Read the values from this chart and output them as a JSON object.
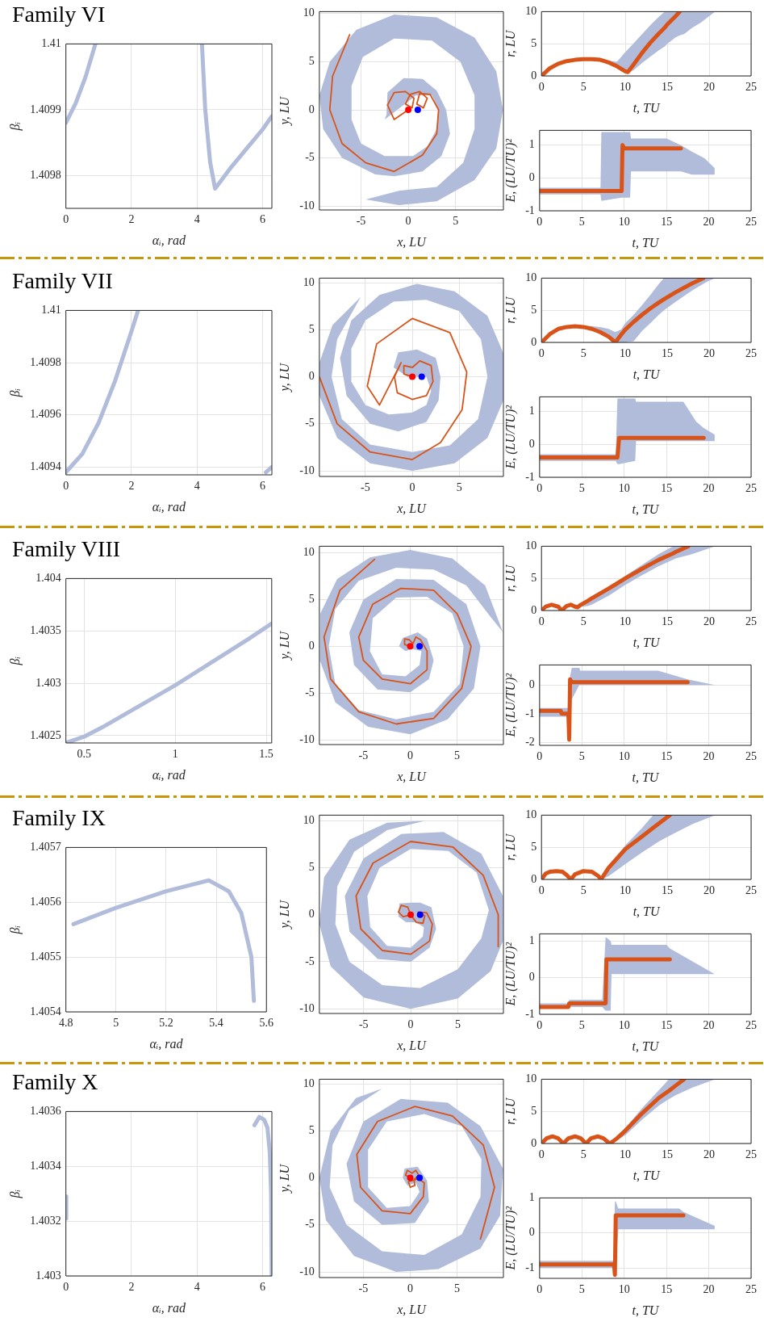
{
  "chart_data": [
    {
      "type": "line",
      "title": "Family VI",
      "xlabel": "αᵢ, rad",
      "ylabel": "βᵢ",
      "xlim": [
        0,
        6.283
      ],
      "xticks": [
        0,
        2,
        4,
        6
      ],
      "ylim": [
        1.40975,
        1.41
      ],
      "yticks": [
        1.4098,
        1.4099,
        1.41
      ],
      "grid": true,
      "series": [
        {
          "color": "#b0bcd9",
          "x": [
            0,
            0.3,
            0.6,
            0.9,
            2.5,
            4.15,
            4.25,
            4.4,
            4.55,
            4.7,
            5.0,
            5.5,
            6.0,
            6.283
          ],
          "values": [
            1.40988,
            1.40991,
            1.40995,
            1.41,
            null,
            1.41,
            1.4099,
            1.40982,
            1.40978,
            1.40979,
            1.40981,
            1.40984,
            1.40987,
            1.40989
          ]
        }
      ]
    },
    {
      "type": "line",
      "xlabel": "x, LU",
      "ylabel": "y, LU",
      "xlim": [
        -9.4,
        10.05
      ],
      "xticks": [
        -5,
        0,
        5
      ],
      "ylim": [
        -10.4,
        10.2
      ],
      "yticks": [
        -10,
        -5,
        0,
        5,
        10
      ],
      "grid": true,
      "series": [
        {
          "type": "area",
          "color": "#b0bcd9",
          "x": [
            -2.3,
            -2.2,
            -0.5,
            1.5,
            3,
            4,
            4.4,
            3.5,
            1.5,
            -1.5,
            -3.5,
            -7,
            -9,
            -9.4,
            -8.3,
            -5.5,
            -1.5,
            3,
            7,
            9.3,
            10,
            9.3,
            7,
            3,
            -1,
            -4.5,
            -1,
            3,
            5.8,
            7,
            7,
            5.5,
            2.5,
            -1.5,
            -4.8,
            -6,
            -6,
            -5,
            -2.5,
            0.5,
            2,
            3,
            3.2,
            2.5,
            0.8,
            -0.5,
            -2.5
          ],
          "values": [
            -0.5,
            1.8,
            3.3,
            3.2,
            2,
            0,
            -2.5,
            -4.8,
            -6.4,
            -6.9,
            -6.7,
            -5,
            -2,
            1.5,
            5,
            8.3,
            9.9,
            9.6,
            7.5,
            4,
            0,
            -4,
            -7.3,
            -9.5,
            -9.9,
            -9.3,
            -8.4,
            -8,
            -5.5,
            -2,
            1.5,
            5,
            7.2,
            7.4,
            5.5,
            2.5,
            -1,
            -3.5,
            -4.8,
            -4.8,
            -3.8,
            -2,
            0,
            1.5,
            1.5,
            0.5,
            -1
          ]
        },
        {
          "type": "line",
          "color": "#d95319",
          "x": [
            0,
            -1.5,
            -2.2,
            -1.5,
            -0.3,
            0.6,
            0.4,
            -0.3,
            0.2,
            1.2,
            2,
            1.6,
            0.9,
            1.2,
            2.3,
            3.2,
            3,
            1.5,
            -1.5,
            -4.5,
            -7,
            -8.3,
            -8,
            -6.2
          ],
          "values": [
            0,
            -1,
            0.5,
            1.8,
            1.9,
            1.2,
            0.2,
            0.6,
            1.6,
            1.9,
            1.2,
            0.2,
            0.6,
            1.7,
            1.6,
            0,
            -2.5,
            -4.7,
            -6.4,
            -5.5,
            -3.5,
            0,
            3.5,
            7.8
          ]
        },
        {
          "type": "scatter",
          "color": "#ff0000",
          "x": [
            0
          ],
          "values": [
            0
          ]
        },
        {
          "type": "scatter",
          "color": "#0000ff",
          "x": [
            1
          ],
          "values": [
            0
          ]
        }
      ]
    },
    {
      "type": "line",
      "xlabel": "t, TU",
      "ylabel": "r, LU",
      "xlim": [
        0,
        25
      ],
      "xticks": [
        0,
        5,
        10,
        15,
        20,
        25
      ],
      "ylim": [
        0,
        10
      ],
      "yticks": [
        0,
        5,
        10
      ],
      "grid": true,
      "series": [
        {
          "type": "line",
          "color": "#d95319",
          "x": [
            0,
            1,
            2,
            3,
            4,
            5,
            6,
            7,
            7.5,
            8,
            8.5,
            9,
            10,
            10.3,
            11,
            12,
            13,
            14,
            14.7,
            15,
            16,
            16.5,
            17,
            18,
            19,
            20,
            20.7
          ],
          "values": [
            0,
            1.2,
            1.9,
            2.3,
            2.5,
            2.6,
            2.6,
            2.5,
            2.3,
            2.1,
            1.8,
            1.5,
            0.7,
            0.6,
            1.8,
            3.6,
            5.2,
            6.6,
            7.5,
            8,
            9.3,
            10,
            null,
            null,
            null,
            null,
            null
          ],
          "lower": [
            0,
            1.1,
            1.8,
            2.2,
            2.4,
            2.5,
            2.5,
            2.4,
            2.3,
            2,
            1.8,
            1.3,
            0.5,
            0.4,
            0.9,
            2,
            3,
            4,
            4.6,
            5,
            6,
            6.3,
            6.5,
            7.5,
            8.3,
            9.3,
            10
          ],
          "upper": [
            0,
            1.3,
            2,
            2.4,
            2.6,
            2.7,
            2.7,
            2.6,
            2.6,
            2.4,
            2.3,
            2.2,
            3.7,
            4.1,
            5.1,
            6.5,
            7.9,
            9.2,
            10,
            10,
            10,
            10,
            10,
            10,
            10,
            10,
            10
          ]
        }
      ]
    },
    {
      "type": "line",
      "xlabel": "t, TU",
      "ylabel": "E, (LU/TU)²",
      "xlim": [
        0,
        25
      ],
      "xticks": [
        0,
        5,
        10,
        15,
        20,
        25
      ],
      "ylim": [
        -1,
        1.45
      ],
      "yticks": [
        -1,
        0,
        1
      ],
      "grid": true,
      "series": [
        {
          "type": "line",
          "color": "#d95319",
          "x": [
            0,
            7.2,
            7.3,
            9.7,
            9.8,
            10,
            10.7,
            10.8,
            15,
            16.7,
            18,
            19.5,
            20.7
          ],
          "values": [
            -0.4,
            -0.4,
            -0.4,
            -0.4,
            1,
            0.9,
            0.9,
            0.9,
            0.9,
            0.9,
            null,
            null,
            null
          ],
          "lower": [
            -0.5,
            -0.5,
            -0.7,
            -0.6,
            -0.6,
            -0.6,
            -0.6,
            0.2,
            0.2,
            0.2,
            0.1,
            0.1,
            0.1
          ],
          "upper": [
            -0.3,
            -0.3,
            1.4,
            1.4,
            1.4,
            1.4,
            1.4,
            1.2,
            1.2,
            1,
            0.8,
            0.6,
            0.3
          ]
        }
      ]
    },
    {
      "type": "line",
      "title": "Family VII",
      "xlabel": "αᵢ, rad",
      "ylabel": "βᵢ",
      "xlim": [
        0,
        6.283
      ],
      "xticks": [
        0,
        2,
        4,
        6
      ],
      "ylim": [
        1.40937,
        1.41
      ],
      "yticks": [
        1.4094,
        1.4096,
        1.4098,
        1.41
      ],
      "grid": true,
      "series": [
        {
          "color": "#b0bcd9",
          "x": [
            0,
            0.5,
            1,
            1.5,
            2,
            2.2,
            4,
            6.1,
            6.28
          ],
          "values": [
            1.40938,
            1.40945,
            1.40957,
            1.40973,
            1.40992,
            1.41,
            null,
            1.40938,
            1.4094
          ]
        }
      ]
    },
    {
      "type": "line",
      "xlabel": "x, LU",
      "ylabel": "y, LU",
      "xlim": [
        -9.9,
        9.7
      ],
      "xticks": [
        -5,
        0,
        5
      ],
      "ylim": [
        -10.6,
        10.5
      ],
      "yticks": [
        -10,
        -5,
        0,
        5,
        10
      ],
      "grid": true,
      "series": [
        {
          "type": "area",
          "color": "#b0bcd9",
          "x": [
            -2,
            -1.5,
            0.5,
            2.5,
            3,
            2.8,
            1.5,
            -1.5,
            -4.5,
            -7,
            -7.7,
            -6.5,
            -3.5,
            0.5,
            4.5,
            8,
            9.7,
            9.7,
            8,
            4.5,
            0,
            -4.5,
            -8,
            -9.9,
            -9.9,
            -8.5,
            -5.5,
            -8,
            -8.6,
            -7.5,
            -4.5,
            0,
            4,
            7,
            8,
            7.3,
            5,
            1.5,
            -2,
            -5,
            -6.5,
            -6.5,
            -5,
            -2.5,
            0,
            1.5,
            2,
            1.5,
            -0.5
          ],
          "values": [
            1,
            2.6,
            2.9,
            2,
            0,
            -2.5,
            -4.8,
            -5.8,
            -5,
            -2,
            2,
            6,
            8.7,
            9.9,
            9.1,
            6.5,
            2.5,
            -2.5,
            -6.5,
            -9.2,
            -10,
            -9.2,
            -6.5,
            -2,
            1.5,
            5.5,
            8.5,
            4,
            0,
            -4.5,
            -7.2,
            -8,
            -7.3,
            -4.5,
            0,
            4,
            7,
            8.2,
            8,
            6,
            3,
            -0.5,
            -3,
            -4,
            -3.8,
            -3,
            -1.5,
            0,
            0
          ]
        },
        {
          "type": "line",
          "color": "#d95319",
          "x": [
            0,
            -0.9,
            -0.9,
            0,
            0.8,
            2,
            2.2,
            1.5,
            0,
            -1.6,
            -1.9,
            -1.2,
            -3.5,
            -4.8,
            -3.8,
            0,
            4,
            5.8,
            5.3,
            3,
            0,
            -4.5,
            -8,
            -9.9
          ],
          "values": [
            0,
            0.3,
            1.2,
            1,
            1.7,
            1.2,
            -0.5,
            -2,
            -2.4,
            -1.7,
            0,
            1.5,
            -3,
            -1,
            3.5,
            6.2,
            4.7,
            0.5,
            -3.5,
            -7,
            -8.8,
            -8,
            -5,
            0
          ]
        },
        {
          "type": "scatter",
          "color": "#ff0000",
          "x": [
            0
          ],
          "values": [
            0
          ]
        },
        {
          "type": "scatter",
          "color": "#0000ff",
          "x": [
            1
          ],
          "values": [
            0
          ]
        }
      ]
    },
    {
      "type": "line",
      "xlabel": "t, TU",
      "ylabel": "r, LU",
      "xlim": [
        0,
        25
      ],
      "xticks": [
        0,
        5,
        10,
        15,
        20,
        25
      ],
      "ylim": [
        0,
        10
      ],
      "yticks": [
        0,
        5,
        10
      ],
      "grid": true,
      "series": [
        {
          "type": "line",
          "color": "#d95319",
          "x": [
            0,
            1,
            2,
            3,
            4,
            5,
            6,
            7,
            8,
            8.8,
            9.5,
            10,
            11,
            12,
            13,
            14,
            14.6,
            16,
            18,
            19.3,
            20,
            20.7
          ],
          "values": [
            0,
            1.3,
            2.1,
            2.4,
            2.5,
            2.4,
            2.1,
            1.6,
            0.9,
            0,
            1.2,
            2,
            3.2,
            4.3,
            5.3,
            6.2,
            6.7,
            7.8,
            9.2,
            10,
            null,
            null
          ],
          "lower": [
            0,
            1.2,
            2,
            2.3,
            2.4,
            2.3,
            1.9,
            1.4,
            0.7,
            0,
            0,
            0,
            0.2,
            1.8,
            3,
            4.3,
            5,
            6.3,
            8.1,
            9.1,
            9.6,
            10
          ],
          "upper": [
            0,
            1.4,
            2.2,
            2.5,
            2.6,
            2.6,
            2.5,
            2.4,
            2.1,
            1.6,
            2,
            3,
            4.3,
            5.8,
            7.4,
            9.1,
            10,
            10,
            10,
            10,
            10,
            10
          ]
        }
      ]
    },
    {
      "type": "line",
      "xlabel": "t, TU",
      "ylabel": "E, (LU/TU)²",
      "xlim": [
        0,
        25
      ],
      "xticks": [
        0,
        5,
        10,
        15,
        20,
        25
      ],
      "ylim": [
        -1,
        1.45
      ],
      "yticks": [
        -1,
        0,
        1
      ],
      "grid": true,
      "series": [
        {
          "type": "line",
          "color": "#d95319",
          "x": [
            0,
            9,
            9.2,
            9.4,
            11.3,
            11.4,
            17,
            18.5,
            19.4,
            20.7
          ],
          "values": [
            -0.4,
            -0.4,
            -0.4,
            0.2,
            0.2,
            0.2,
            0.2,
            0.2,
            0.2,
            null
          ],
          "lower": [
            -0.5,
            -0.5,
            -0.6,
            -0.6,
            -0.5,
            0.1,
            0.1,
            0.1,
            0.1,
            0.1
          ],
          "upper": [
            -0.3,
            -0.3,
            1.4,
            1.4,
            1.4,
            1.3,
            1.3,
            0.7,
            0.5,
            0.3
          ]
        }
      ]
    },
    {
      "type": "line",
      "title": "Family VIII",
      "xlabel": "αᵢ, rad",
      "ylabel": "βᵢ",
      "xlim": [
        0.4,
        1.53
      ],
      "xticks": [
        0.5,
        1,
        1.5
      ],
      "ylim": [
        1.40243,
        1.404
      ],
      "yticks": [
        1.4025,
        1.403,
        1.4035,
        1.404
      ],
      "grid": true,
      "series": [
        {
          "color": "#b0bcd9",
          "x": [
            0.4,
            0.5,
            0.6,
            0.8,
            1.0,
            1.2,
            1.4,
            1.53
          ],
          "values": [
            1.40243,
            1.40249,
            1.40258,
            1.40278,
            1.40298,
            1.4032,
            1.40342,
            1.40357
          ]
        }
      ]
    },
    {
      "type": "line",
      "xlabel": "x, LU",
      "ylabel": "y, LU",
      "xlim": [
        -9.7,
        9.95
      ],
      "xticks": [
        -5,
        0,
        5
      ],
      "ylim": [
        -10.5,
        10.7
      ],
      "yticks": [
        -10,
        -5,
        0,
        5,
        10
      ],
      "grid": true,
      "series": [
        {
          "type": "area",
          "color": "#b0bcd9",
          "x": [
            -1.2,
            -0.8,
            0.8,
            1.8,
            2.5,
            2,
            0,
            -3.5,
            -6,
            -6.5,
            -5,
            -1.5,
            2.5,
            6,
            7.5,
            6.8,
            4,
            0,
            -4.5,
            -8,
            -9.65,
            -9.6,
            -7.8,
            -4.3,
            0,
            4.5,
            8,
            9.9,
            8.3,
            6,
            2.5,
            -1.5,
            -5.5,
            -8,
            -8.7,
            -8,
            -5.5,
            -1.5,
            2.5,
            5.3,
            5.7,
            4.5,
            1.8,
            -1.5,
            -4,
            -4.3,
            -3,
            -0.5,
            1,
            1.2,
            0.2,
            -0.5
          ],
          "values": [
            0,
            0.9,
            1.5,
            0.8,
            -1.5,
            -3.5,
            -4.9,
            -4.6,
            -2,
            1.5,
            5,
            7.2,
            7.1,
            4.5,
            0,
            -4.5,
            -7.8,
            -9.4,
            -8.6,
            -6,
            -1.5,
            3.5,
            7.2,
            9.5,
            10.3,
            9.4,
            6.5,
            1.5,
            3.5,
            6.5,
            8.2,
            8.4,
            7,
            4,
            0,
            -4,
            -6.8,
            -7.8,
            -7,
            -4,
            0,
            3.5,
            5.3,
            5.2,
            3,
            -0.5,
            -3,
            -3.2,
            -2,
            -0.5,
            -0.3,
            -0.5
          ]
        },
        {
          "type": "line",
          "color": "#d95319",
          "x": [
            0,
            -0.6,
            -0.6,
            -0.1,
            0.3,
            0.6,
            1.1,
            1.8,
            1.8,
            0,
            -3,
            -5,
            -5.5,
            -4,
            -1,
            2.5,
            5,
            6.5,
            5.5,
            2.5,
            -1.5,
            -5.5,
            -8.5,
            -9.2,
            -7.5,
            -3.8
          ],
          "values": [
            0,
            0.2,
            0.8,
            0.7,
            0.3,
            1,
            0.7,
            -0.5,
            -2.5,
            -4,
            -3.5,
            -1.5,
            1,
            4.5,
            6.2,
            6,
            3.5,
            0,
            -4.5,
            -7.7,
            -8.3,
            -7,
            -3.5,
            1,
            6,
            9.3
          ]
        },
        {
          "type": "scatter",
          "color": "#ff0000",
          "x": [
            0
          ],
          "values": [
            0
          ]
        },
        {
          "type": "scatter",
          "color": "#0000ff",
          "x": [
            1
          ],
          "values": [
            0
          ]
        }
      ]
    },
    {
      "type": "line",
      "xlabel": "t, TU",
      "ylabel": "r, LU",
      "xlim": [
        0,
        25
      ],
      "xticks": [
        0,
        5,
        10,
        15,
        20,
        25
      ],
      "ylim": [
        0,
        10
      ],
      "yticks": [
        0,
        5,
        10
      ],
      "grid": true,
      "series": [
        {
          "type": "line",
          "color": "#d95319",
          "x": [
            0,
            0.5,
            1.2,
            2,
            2.4,
            3,
            3.5,
            4,
            4.3,
            4.7,
            5.5,
            6,
            8,
            10,
            12,
            14,
            15.7,
            16,
            17.5,
            18,
            20.7
          ],
          "values": [
            0,
            0.6,
            0.9,
            0.6,
            0,
            0.7,
            0.9,
            0.6,
            0.5,
            0.9,
            1.5,
            1.9,
            3.4,
            5,
            6.5,
            7.9,
            8.9,
            9.1,
            10,
            null,
            null
          ],
          "lower": [
            0,
            0.5,
            0.8,
            0.5,
            0,
            0.6,
            0.8,
            0.5,
            0.4,
            0.6,
            0.7,
            0.9,
            2.3,
            4,
            5.5,
            6.9,
            7.9,
            8.1,
            8.6,
            8.8,
            10
          ],
          "upper": [
            0,
            0.7,
            1,
            0.7,
            0.1,
            0.8,
            1,
            0.8,
            0.7,
            1,
            1.6,
            2,
            3.6,
            5.4,
            7.1,
            8.8,
            10,
            10,
            10,
            10,
            10
          ]
        }
      ]
    },
    {
      "type": "line",
      "xlabel": "t, TU",
      "ylabel": "E, (LU/TU)²",
      "xlim": [
        0,
        25
      ],
      "xticks": [
        0,
        5,
        10,
        15,
        20,
        25
      ],
      "ylim": [
        -2.1,
        0.7
      ],
      "yticks": [
        -2,
        -1,
        0
      ],
      "grid": true,
      "series": [
        {
          "type": "line",
          "color": "#d95319",
          "x": [
            0,
            2.5,
            2.6,
            3.4,
            3.5,
            3.6,
            3.8,
            4.7,
            4.8,
            14,
            17.5,
            20.7
          ],
          "values": [
            -0.9,
            -0.9,
            -1,
            -1,
            -1.9,
            0.2,
            0.1,
            0.1,
            0.1,
            0.1,
            0.1,
            null
          ],
          "lower": [
            -1.1,
            -1.1,
            -1.1,
            -1.1,
            -2,
            -1.5,
            -0.5,
            0,
            0,
            0,
            0,
            0
          ],
          "upper": [
            -0.8,
            -0.8,
            -0.8,
            -0.8,
            -0.8,
            0.3,
            0.6,
            0.6,
            0.5,
            0.5,
            0.2,
            0
          ]
        }
      ]
    },
    {
      "type": "line",
      "title": "Family IX",
      "xlabel": "αᵢ, rad",
      "ylabel": "βᵢ",
      "xlim": [
        4.8,
        5.6
      ],
      "xticks": [
        4.8,
        5,
        5.2,
        5.4,
        5.6
      ],
      "ylim": [
        1.4054,
        1.4057
      ],
      "yticks": [
        1.4054,
        1.4055,
        1.4056,
        1.4057
      ],
      "grid": true,
      "series": [
        {
          "color": "#b0bcd9",
          "x": [
            4.83,
            5,
            5.2,
            5.37,
            5.45,
            5.5,
            5.54,
            5.55
          ],
          "values": [
            1.40556,
            1.40559,
            1.40562,
            1.40564,
            1.40562,
            1.40558,
            1.4055,
            1.40542
          ]
        }
      ]
    },
    {
      "type": "line",
      "xlabel": "x, LU",
      "ylabel": "y, LU",
      "xlim": [
        -9.7,
        9.85
      ],
      "xticks": [
        -5,
        0,
        5
      ],
      "ylim": [
        -10.5,
        10.6
      ],
      "yticks": [
        -10,
        -5,
        0,
        5,
        10
      ],
      "grid": true,
      "series": [
        {
          "type": "area",
          "color": "#b0bcd9",
          "x": [
            -1.3,
            -1.2,
            0,
            1,
            2.2,
            2.7,
            2,
            0,
            -3.5,
            -6.5,
            -7,
            -5,
            -1,
            3.5,
            7.5,
            9.8,
            9.8,
            8.5,
            5,
            0,
            -5,
            -8.5,
            -9.7,
            -9.2,
            -6.5,
            -2.5,
            1.5,
            -2.5,
            -6,
            -7.8,
            -8,
            -6.5,
            -3,
            1,
            5,
            7.5,
            8.3,
            7,
            4,
            0,
            -3.3,
            -4.6,
            -4.3,
            -2.5,
            0,
            1.3,
            1.4,
            0.5,
            -0.5
          ],
          "values": [
            -0.2,
            1.2,
            1.3,
            1.3,
            0.8,
            -1.5,
            -3.5,
            -5,
            -4.7,
            -1.8,
            2,
            6,
            8.6,
            8.8,
            6.5,
            2,
            -2.8,
            -6,
            -8.9,
            -10,
            -8.8,
            -5.5,
            -1,
            4,
            8,
            9.8,
            10,
            9,
            6.7,
            3,
            -1,
            -5,
            -7.5,
            -7.8,
            -5.8,
            -2.5,
            0.5,
            4.5,
            6.8,
            7,
            5,
            2,
            -1.3,
            -3.3,
            -3.5,
            -2.3,
            -1.3,
            -0.8,
            -0.8
          ]
        },
        {
          "type": "line",
          "color": "#d95319",
          "x": [
            0,
            -0.3,
            -1,
            -1.3,
            -0.8,
            0,
            0.6,
            1.3,
            1.5,
            0.8,
            1.7,
            2.3,
            2,
            0,
            -3,
            -5.3,
            -5.8,
            -4,
            0,
            4.5,
            7.7,
            9.3,
            9.3
          ],
          "values": [
            0,
            0.8,
            1,
            0.3,
            -0.2,
            0,
            -0.8,
            -0.9,
            -0.1,
            0.3,
            0.2,
            -1,
            -2.8,
            -4.2,
            -3.8,
            -1.5,
            2,
            5.5,
            7.8,
            7.2,
            4.2,
            0,
            -3.4
          ]
        },
        {
          "type": "scatter",
          "color": "#ff0000",
          "x": [
            0
          ],
          "values": [
            0
          ]
        },
        {
          "type": "scatter",
          "color": "#0000ff",
          "x": [
            1
          ],
          "values": [
            0
          ]
        }
      ]
    },
    {
      "type": "line",
      "xlabel": "t, TU",
      "ylabel": "r, LU",
      "xlim": [
        0,
        25
      ],
      "xticks": [
        0,
        5,
        10,
        15,
        20,
        25
      ],
      "ylim": [
        0,
        10
      ],
      "yticks": [
        0,
        5,
        10
      ],
      "grid": true,
      "series": [
        {
          "type": "line",
          "color": "#d95319",
          "x": [
            0,
            0.5,
            1,
            1.8,
            2.5,
            3,
            3.5,
            4,
            5,
            6,
            6.8,
            7.1,
            8,
            10,
            12,
            13.3,
            14,
            15.3,
            18,
            20.7
          ],
          "values": [
            0,
            0.9,
            1.2,
            1.3,
            1.2,
            0.7,
            0,
            0.8,
            1.3,
            1.2,
            0.5,
            0,
            1.8,
            4.7,
            6.7,
            8,
            8.7,
            10,
            null,
            null
          ],
          "lower": [
            0,
            0.8,
            1.1,
            1.2,
            1.1,
            0.6,
            0,
            0.7,
            1.2,
            1.1,
            0.4,
            0,
            0.5,
            2.4,
            4.2,
            5.3,
            5.9,
            6.8,
            8.6,
            10
          ],
          "upper": [
            0,
            1,
            1.3,
            1.4,
            1.3,
            0.8,
            0.1,
            0.9,
            1.4,
            1.3,
            0.6,
            0.3,
            2.2,
            5.3,
            8,
            10,
            10,
            10,
            10,
            10
          ]
        }
      ]
    },
    {
      "type": "line",
      "xlabel": "t, TU",
      "ylabel": "E, (LU/TU)²",
      "xlim": [
        0,
        25
      ],
      "xticks": [
        0,
        5,
        10,
        15,
        20,
        25
      ],
      "ylim": [
        -1,
        1.2
      ],
      "yticks": [
        -1,
        0,
        1
      ],
      "grid": true,
      "series": [
        {
          "type": "line",
          "color": "#d95319",
          "x": [
            0,
            3.4,
            3.5,
            7.4,
            7.8,
            7.9,
            8.4,
            8.5,
            15,
            15.4,
            20.7
          ],
          "values": [
            -0.8,
            -0.8,
            -0.7,
            -0.7,
            -0.7,
            0.5,
            0.5,
            0.5,
            0.5,
            0.5,
            null
          ],
          "lower": [
            -0.8,
            -0.8,
            -0.8,
            -0.8,
            -0.9,
            -0.9,
            -0.9,
            0.1,
            0.1,
            0.1,
            0.1
          ],
          "upper": [
            -0.7,
            -0.7,
            -0.6,
            -0.6,
            1.1,
            1.1,
            1,
            0.9,
            0.9,
            0.8,
            0.1
          ]
        }
      ]
    },
    {
      "type": "line",
      "title": "Family X",
      "xlabel": "αᵢ, rad",
      "ylabel": "βᵢ",
      "xlim": [
        0,
        6.283
      ],
      "xticks": [
        0,
        2,
        4,
        6
      ],
      "ylim": [
        1.403,
        1.4036
      ],
      "yticks": [
        1.403,
        1.4032,
        1.4034,
        1.4036
      ],
      "grid": true,
      "series": [
        {
          "color": "#b0bcd9",
          "x": [
            0.01,
            0.01,
            3,
            5.75,
            5.9,
            6.05,
            6.15,
            6.22,
            6.26,
            6.28
          ],
          "values": [
            1.40321,
            1.40329,
            null,
            1.40355,
            1.40358,
            1.40357,
            1.40354,
            1.40345,
            1.4033,
            1.403
          ]
        }
      ]
    },
    {
      "type": "line",
      "xlabel": "x, LU",
      "ylabel": "y, LU",
      "xlim": [
        -9.7,
        9.95
      ],
      "xticks": [
        -5,
        0,
        5
      ],
      "ylim": [
        -10.6,
        10.5
      ],
      "yticks": [
        -10,
        -5,
        0,
        5,
        10
      ],
      "grid": true,
      "series": [
        {
          "type": "area",
          "color": "#b0bcd9",
          "x": [
            -0.8,
            -0.6,
            0.8,
            1.8,
            2,
            0.5,
            -3,
            -6,
            -6.8,
            -5,
            -1,
            4,
            7.5,
            9.9,
            9.6,
            7.5,
            3,
            -1.5,
            -6,
            -9,
            -9.7,
            -8.5,
            -5.8,
            -3,
            -6.5,
            -8.3,
            -8.6,
            -6.8,
            -3,
            1.5,
            5.5,
            7.5,
            7.6,
            5.5,
            1.5,
            -2.5,
            -4.5,
            -4.5,
            -2.5,
            0,
            1,
            0.6,
            -0.3
          ],
          "values": [
            0,
            1,
            1.2,
            -0.3,
            -2.5,
            -4.8,
            -5,
            -2.5,
            1.5,
            6,
            8.4,
            8,
            5.5,
            1,
            -4,
            -7.5,
            -9.7,
            -10,
            -8.3,
            -4.5,
            0,
            5,
            8.5,
            9.5,
            7.2,
            3.5,
            -1,
            -5,
            -7.8,
            -8.2,
            -6,
            -2,
            2,
            5.5,
            6.8,
            6,
            3,
            -1,
            -3.2,
            -3,
            -1.5,
            -0.5,
            -0.8
          ]
        },
        {
          "type": "line",
          "color": "#d95319",
          "x": [
            0,
            -0.5,
            -0.3,
            0.2,
            0.6,
            0.9,
            0.4,
            0.5,
            0,
            -0.2,
            0.8,
            1.5,
            1.4,
            0,
            -3,
            -5.3,
            -5.7,
            -3.5,
            0.5,
            4.5,
            7.8,
            9,
            7.5
          ],
          "values": [
            0,
            0.3,
            0.8,
            0.5,
            0.8,
            0.3,
            -0.2,
            -0.8,
            -1,
            -0.4,
            -0.1,
            -0.5,
            -2,
            -3.8,
            -3.5,
            -1,
            2.5,
            6,
            7.6,
            6.6,
            3.5,
            -1,
            -6.5
          ]
        },
        {
          "type": "scatter",
          "color": "#ff0000",
          "x": [
            0
          ],
          "values": [
            0
          ]
        },
        {
          "type": "scatter",
          "color": "#0000ff",
          "x": [
            1
          ],
          "values": [
            0
          ]
        }
      ]
    },
    {
      "type": "line",
      "xlabel": "t, TU",
      "ylabel": "r, LU",
      "xlim": [
        0,
        25
      ],
      "xticks": [
        0,
        5,
        10,
        15,
        20,
        25
      ],
      "ylim": [
        0,
        10
      ],
      "yticks": [
        0,
        5,
        10
      ],
      "grid": true,
      "series": [
        {
          "type": "line",
          "color": "#d95319",
          "x": [
            0,
            0.6,
            1.3,
            2,
            2.6,
            3.2,
            4,
            4.7,
            5.3,
            5.9,
            6.7,
            7.4,
            8.1,
            8.5,
            9,
            10,
            12,
            14,
            15.2,
            16,
            17,
            18,
            20.7
          ],
          "values": [
            0,
            0.8,
            1.1,
            0.8,
            0,
            0.8,
            1.1,
            0.8,
            0,
            0.8,
            1.1,
            0.8,
            0,
            0.3,
            0.8,
            2,
            4.7,
            7.1,
            8.2,
            9,
            10,
            null,
            null
          ],
          "lower": [
            0,
            0.7,
            1,
            0.7,
            0,
            0.7,
            1,
            0.7,
            0,
            0.7,
            1,
            0.7,
            0,
            0.2,
            0.5,
            1.3,
            3.7,
            5.9,
            6.9,
            7.5,
            8.1,
            8.7,
            10
          ],
          "upper": [
            0,
            0.9,
            1.2,
            0.9,
            0.1,
            0.9,
            1.2,
            0.9,
            0.1,
            0.9,
            1.2,
            0.9,
            0.3,
            0.6,
            1.1,
            2.4,
            5.5,
            8.3,
            10,
            10,
            10,
            10,
            10
          ]
        }
      ]
    },
    {
      "type": "line",
      "xlabel": "t, TU",
      "ylabel": "E, (LU/TU)²",
      "xlim": [
        0,
        25
      ],
      "xticks": [
        0,
        5,
        10,
        15,
        20,
        25
      ],
      "ylim": [
        -1.3,
        1
      ],
      "yticks": [
        -1,
        0,
        1
      ],
      "grid": true,
      "series": [
        {
          "type": "line",
          "color": "#d95319",
          "x": [
            0,
            8.6,
            8.8,
            8.9,
            9,
            9.3,
            16.5,
            17,
            20.7
          ],
          "values": [
            -0.9,
            -0.9,
            -0.9,
            -1.2,
            0.5,
            0.5,
            0.5,
            0.5,
            null
          ],
          "lower": [
            -1,
            -1,
            -1,
            -1.3,
            -1.1,
            0.1,
            0.1,
            0.1,
            0.1
          ],
          "upper": [
            -0.8,
            -0.8,
            -0.8,
            0.9,
            0.9,
            0.7,
            0.7,
            0.6,
            0.2
          ]
        }
      ]
    }
  ]
}
